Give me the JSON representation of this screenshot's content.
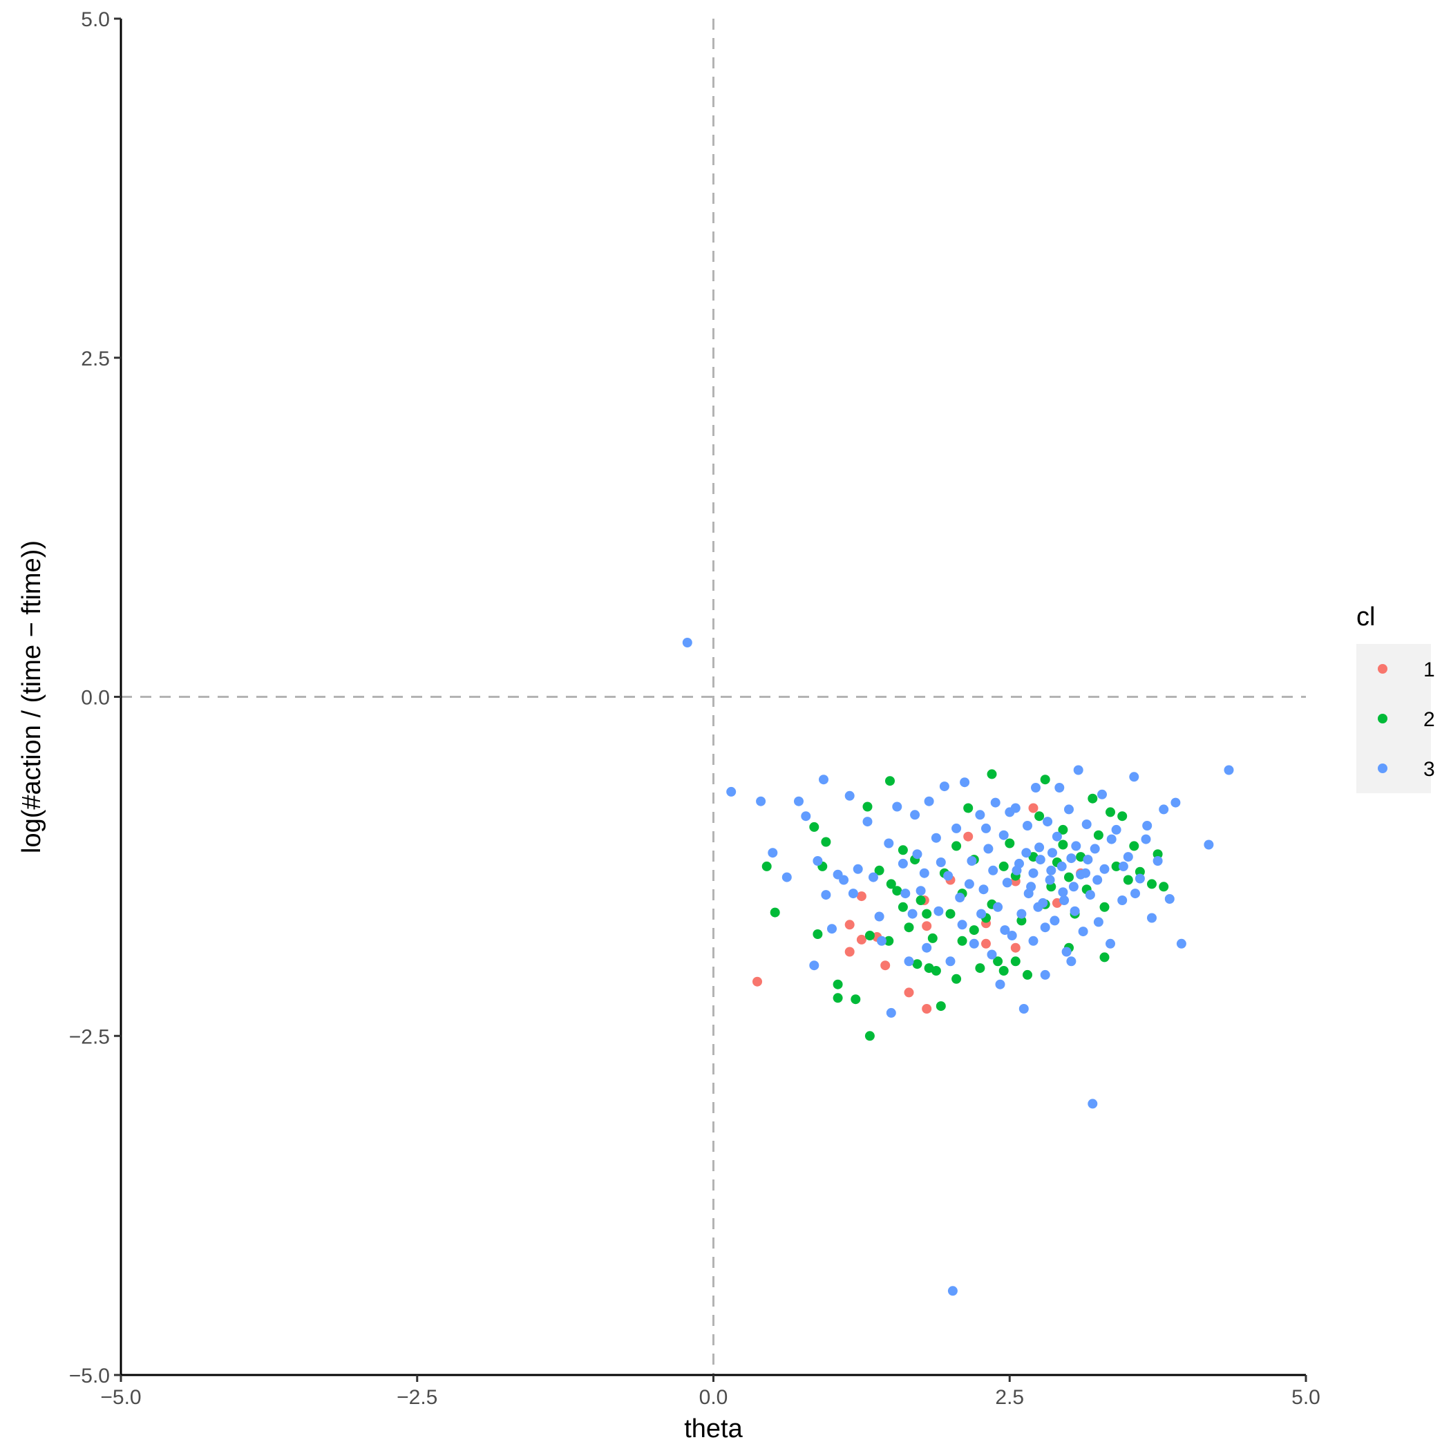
{
  "chart_data": {
    "type": "scatter",
    "title": "",
    "xlabel": "theta",
    "ylabel": "log(#action / (time − ftime))",
    "xlim": [
      -5,
      5
    ],
    "ylim": [
      -5,
      5
    ],
    "x_ticks": [
      "−5.0",
      "−2.5",
      "0.0",
      "2.5",
      "5.0"
    ],
    "y_ticks": [
      "−5.0",
      "−2.5",
      "0.0",
      "2.5",
      "5.0"
    ],
    "x_tick_values": [
      -5,
      -2.5,
      0,
      2.5,
      5
    ],
    "y_tick_values": [
      -5,
      -2.5,
      0,
      2.5,
      5
    ],
    "reference_lines": {
      "x": 0,
      "y": 0,
      "style": "dashed",
      "color": "#b3b3b3"
    },
    "grid": false,
    "legend": {
      "title": "cl",
      "position": "right",
      "entries": [
        {
          "label": "1",
          "color": "#F8766D"
        },
        {
          "label": "2",
          "color": "#00BA38"
        },
        {
          "label": "3",
          "color": "#619CFF"
        }
      ]
    },
    "series": [
      {
        "name": "1",
        "color": "#F8766D",
        "points": [
          [
            0.37,
            -2.1
          ],
          [
            1.15,
            -1.68
          ],
          [
            1.15,
            -1.88
          ],
          [
            1.25,
            -1.47
          ],
          [
            1.25,
            -1.79
          ],
          [
            1.38,
            -1.77
          ],
          [
            1.45,
            -1.98
          ],
          [
            1.65,
            -2.18
          ],
          [
            1.78,
            -1.5
          ],
          [
            1.8,
            -2.3
          ],
          [
            2.0,
            -1.35
          ],
          [
            2.15,
            -1.03
          ],
          [
            2.3,
            -1.82
          ],
          [
            2.3,
            -1.67
          ],
          [
            2.55,
            -1.36
          ],
          [
            2.55,
            -1.85
          ],
          [
            2.7,
            -0.82
          ],
          [
            2.9,
            -1.52
          ],
          [
            3.1,
            -1.3
          ],
          [
            1.8,
            -1.69
          ]
        ]
      },
      {
        "name": "2",
        "color": "#00BA38",
        "points": [
          [
            0.45,
            -1.25
          ],
          [
            0.52,
            -1.59
          ],
          [
            0.85,
            -0.96
          ],
          [
            0.88,
            -1.75
          ],
          [
            0.92,
            -1.25
          ],
          [
            0.95,
            -1.07
          ],
          [
            1.05,
            -2.12
          ],
          [
            1.05,
            -2.22
          ],
          [
            1.2,
            -2.23
          ],
          [
            1.3,
            -0.81
          ],
          [
            1.32,
            -1.76
          ],
          [
            1.32,
            -2.5
          ],
          [
            1.48,
            -1.8
          ],
          [
            1.49,
            -0.62
          ],
          [
            1.5,
            -1.38
          ],
          [
            1.55,
            -1.43
          ],
          [
            1.6,
            -1.13
          ],
          [
            1.65,
            -1.7
          ],
          [
            1.7,
            -1.2
          ],
          [
            1.72,
            -1.97
          ],
          [
            1.75,
            -1.5
          ],
          [
            1.8,
            -1.6
          ],
          [
            1.82,
            -2.0
          ],
          [
            1.85,
            -1.78
          ],
          [
            1.88,
            -2.02
          ],
          [
            1.92,
            -2.28
          ],
          [
            1.95,
            -1.3
          ],
          [
            2.0,
            -1.6
          ],
          [
            2.05,
            -1.1
          ],
          [
            2.1,
            -1.45
          ],
          [
            2.1,
            -1.8
          ],
          [
            2.15,
            -0.82
          ],
          [
            2.2,
            -1.2
          ],
          [
            2.25,
            -2.0
          ],
          [
            2.3,
            -1.63
          ],
          [
            2.35,
            -1.53
          ],
          [
            2.35,
            -0.57
          ],
          [
            2.4,
            -1.95
          ],
          [
            2.45,
            -1.25
          ],
          [
            2.5,
            -1.08
          ],
          [
            2.55,
            -1.32
          ],
          [
            2.6,
            -1.65
          ],
          [
            2.65,
            -2.05
          ],
          [
            2.7,
            -1.18
          ],
          [
            2.75,
            -0.88
          ],
          [
            2.8,
            -1.53
          ],
          [
            2.8,
            -0.61
          ],
          [
            2.85,
            -1.4
          ],
          [
            2.9,
            -1.22
          ],
          [
            2.95,
            -1.09
          ],
          [
            3.0,
            -1.33
          ],
          [
            3.05,
            -1.6
          ],
          [
            3.1,
            -1.18
          ],
          [
            3.15,
            -1.42
          ],
          [
            3.2,
            -0.75
          ],
          [
            3.25,
            -1.02
          ],
          [
            3.3,
            -1.55
          ],
          [
            3.35,
            -0.85
          ],
          [
            3.4,
            -1.25
          ],
          [
            3.45,
            -0.88
          ],
          [
            3.5,
            -1.35
          ],
          [
            3.55,
            -1.1
          ],
          [
            3.6,
            -1.29
          ],
          [
            3.7,
            -1.38
          ],
          [
            3.75,
            -1.16
          ],
          [
            3.8,
            -1.4
          ],
          [
            3.3,
            -1.92
          ],
          [
            1.4,
            -1.28
          ],
          [
            2.55,
            -1.95
          ],
          [
            2.95,
            -0.98
          ],
          [
            2.2,
            -1.72
          ],
          [
            1.6,
            -1.55
          ],
          [
            2.05,
            -2.08
          ],
          [
            3.0,
            -1.85
          ],
          [
            2.45,
            -2.02
          ]
        ]
      },
      {
        "name": "3",
        "color": "#619CFF",
        "points": [
          [
            -0.22,
            0.4
          ],
          [
            0.15,
            -0.7
          ],
          [
            0.4,
            -0.77
          ],
          [
            0.5,
            -1.15
          ],
          [
            0.62,
            -1.33
          ],
          [
            0.72,
            -0.77
          ],
          [
            0.78,
            -0.88
          ],
          [
            0.85,
            -1.98
          ],
          [
            0.88,
            -1.21
          ],
          [
            0.93,
            -0.61
          ],
          [
            1.0,
            -1.71
          ],
          [
            1.05,
            -1.31
          ],
          [
            1.15,
            -0.73
          ],
          [
            1.18,
            -1.45
          ],
          [
            1.22,
            -1.27
          ],
          [
            1.3,
            -0.92
          ],
          [
            1.35,
            -1.33
          ],
          [
            1.4,
            -1.62
          ],
          [
            1.48,
            -1.08
          ],
          [
            1.5,
            -2.33
          ],
          [
            1.55,
            -0.81
          ],
          [
            1.6,
            -1.23
          ],
          [
            1.65,
            -1.95
          ],
          [
            1.7,
            -0.87
          ],
          [
            1.72,
            -1.16
          ],
          [
            1.75,
            -1.43
          ],
          [
            1.8,
            -1.85
          ],
          [
            1.82,
            -0.77
          ],
          [
            1.88,
            -1.04
          ],
          [
            1.9,
            -1.58
          ],
          [
            1.95,
            -0.66
          ],
          [
            1.98,
            -1.32
          ],
          [
            2.0,
            -1.95
          ],
          [
            2.02,
            -4.38
          ],
          [
            2.05,
            -0.97
          ],
          [
            2.1,
            -1.68
          ],
          [
            2.12,
            -0.63
          ],
          [
            2.18,
            -1.21
          ],
          [
            2.2,
            -1.82
          ],
          [
            2.25,
            -0.87
          ],
          [
            2.28,
            -1.42
          ],
          [
            2.32,
            -1.12
          ],
          [
            2.35,
            -1.9
          ],
          [
            2.38,
            -0.78
          ],
          [
            2.4,
            -1.55
          ],
          [
            2.42,
            -2.12
          ],
          [
            2.45,
            -1.02
          ],
          [
            2.48,
            -1.37
          ],
          [
            2.52,
            -1.76
          ],
          [
            2.55,
            -0.82
          ],
          [
            2.58,
            -1.23
          ],
          [
            2.6,
            -1.6
          ],
          [
            2.62,
            -2.3
          ],
          [
            2.65,
            -0.95
          ],
          [
            2.68,
            -1.4
          ],
          [
            2.7,
            -1.8
          ],
          [
            2.72,
            -0.67
          ],
          [
            2.75,
            -1.11
          ],
          [
            2.78,
            -1.52
          ],
          [
            2.8,
            -2.05
          ],
          [
            2.82,
            -0.92
          ],
          [
            2.85,
            -1.28
          ],
          [
            2.88,
            -1.65
          ],
          [
            2.9,
            -1.03
          ],
          [
            2.92,
            -0.67
          ],
          [
            2.95,
            -1.44
          ],
          [
            2.98,
            -1.88
          ],
          [
            3.0,
            -0.83
          ],
          [
            3.02,
            -1.19
          ],
          [
            3.05,
            -1.58
          ],
          [
            3.08,
            -0.54
          ],
          [
            3.1,
            -1.31
          ],
          [
            3.12,
            -1.73
          ],
          [
            3.15,
            -0.94
          ],
          [
            3.18,
            -1.46
          ],
          [
            3.2,
            -3.0
          ],
          [
            3.22,
            -1.12
          ],
          [
            3.25,
            -1.66
          ],
          [
            3.28,
            -0.72
          ],
          [
            3.3,
            -1.27
          ],
          [
            3.35,
            -1.82
          ],
          [
            3.4,
            -0.98
          ],
          [
            3.45,
            -1.5
          ],
          [
            3.5,
            -1.18
          ],
          [
            3.55,
            -0.59
          ],
          [
            3.6,
            -1.34
          ],
          [
            3.65,
            -1.05
          ],
          [
            3.7,
            -1.63
          ],
          [
            3.75,
            -1.21
          ],
          [
            3.8,
            -0.83
          ],
          [
            3.85,
            -1.49
          ],
          [
            3.9,
            -0.78
          ],
          [
            3.95,
            -1.82
          ],
          [
            4.18,
            -1.09
          ],
          [
            4.35,
            -0.54
          ],
          [
            2.7,
            -1.3
          ],
          [
            2.76,
            -1.2
          ],
          [
            2.84,
            -1.35
          ],
          [
            2.86,
            -1.15
          ],
          [
            2.94,
            -1.25
          ],
          [
            3.04,
            -1.4
          ],
          [
            3.06,
            -1.1
          ],
          [
            3.14,
            -1.3
          ],
          [
            3.16,
            -1.2
          ],
          [
            2.66,
            -1.45
          ],
          [
            2.74,
            -1.55
          ],
          [
            2.96,
            -1.5
          ],
          [
            3.24,
            -1.35
          ],
          [
            2.56,
            -1.28
          ],
          [
            2.64,
            -1.15
          ],
          [
            1.62,
            -1.45
          ],
          [
            1.92,
            -1.22
          ],
          [
            2.08,
            -1.48
          ],
          [
            2.26,
            -1.6
          ],
          [
            2.36,
            -1.28
          ],
          [
            2.46,
            -1.72
          ],
          [
            1.68,
            -1.6
          ],
          [
            1.78,
            -1.3
          ],
          [
            2.16,
            -1.38
          ],
          [
            3.36,
            -1.05
          ],
          [
            3.46,
            -1.25
          ],
          [
            3.56,
            -1.45
          ],
          [
            3.66,
            -0.95
          ],
          [
            3.02,
            -1.95
          ],
          [
            2.8,
            -1.7
          ],
          [
            1.42,
            -1.8
          ],
          [
            0.95,
            -1.46
          ],
          [
            1.1,
            -1.35
          ],
          [
            2.3,
            -0.97
          ],
          [
            2.5,
            -0.85
          ]
        ]
      }
    ]
  }
}
